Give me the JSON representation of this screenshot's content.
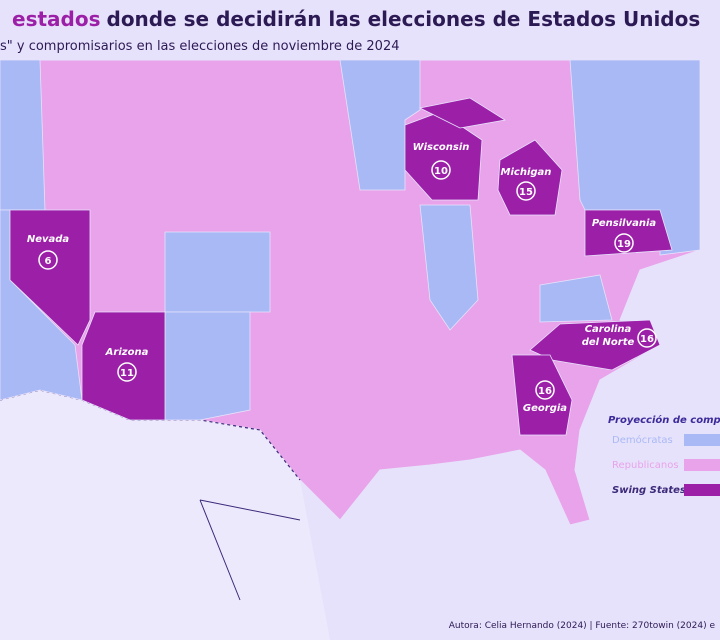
{
  "header": {
    "title_highlight": "estados",
    "title_rest": "donde se decidirán las elecciones de Estados Unidos",
    "subtitle": "s\" y compromisarios en las elecciones de noviembre de 2024"
  },
  "states": [
    {
      "name": "Wisconsin",
      "votes": 10
    },
    {
      "name": "Michigan",
      "votes": 15
    },
    {
      "name": "Pensilvania",
      "votes": 19
    },
    {
      "name": "Nevada",
      "votes": 6
    },
    {
      "name": "Arizona",
      "votes": 11
    },
    {
      "name": "Carolina del Norte",
      "votes": 16
    },
    {
      "name": "Georgia",
      "votes": 16
    }
  ],
  "legend": {
    "title": "Proyección de compr",
    "items": [
      {
        "label": "Demócratas",
        "color": "#a9b9f6"
      },
      {
        "label": "Republicanos",
        "color": "#e8a3ea"
      },
      {
        "label": "Swing States",
        "color": "#9c1fa8"
      }
    ]
  },
  "source": "Autora: Celia Hernando (2024) | Fuente: 270towin (2024) e"
}
